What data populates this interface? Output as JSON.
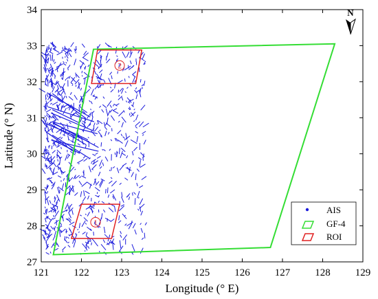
{
  "chart_data": {
    "type": "scatter",
    "title": "",
    "xlabel": "Longitude (° E)",
    "ylabel": "Latitude (° N)",
    "xlim": [
      121,
      129
    ],
    "ylim": [
      27,
      34
    ],
    "xticks": [
      121,
      122,
      123,
      124,
      125,
      126,
      127,
      128,
      129
    ],
    "yticks": [
      27,
      28,
      29,
      30,
      31,
      32,
      33,
      34
    ],
    "grid": false,
    "legend_position": "bottom-right",
    "north_arrow_label": "N",
    "colors": {
      "ais": "#1a1adc",
      "gf4": "#33dd33",
      "roi": "#e02020"
    },
    "series": [
      {
        "name": "AIS",
        "kind": "points",
        "region": {
          "lon": [
            121.1,
            123.6
          ],
          "lat": [
            27.2,
            33.0
          ]
        }
      },
      {
        "name": "GF-4",
        "kind": "polygon",
        "lon": [
          121.3,
          122.3,
          128.3,
          126.7
        ],
        "lat": [
          27.2,
          32.9,
          33.05,
          27.4
        ]
      },
      {
        "name": "ROI",
        "kind": "polygon",
        "lon": [
          121.7,
          122.0,
          123.0,
          122.8
        ],
        "lat": [
          27.65,
          28.6,
          28.6,
          27.65
        ]
      }
    ],
    "roi_regions": [
      {
        "label": "1",
        "lon": [
          121.75,
          122.0,
          122.95,
          122.75
        ],
        "lat": [
          27.65,
          28.6,
          28.6,
          27.65
        ],
        "label_at": [
          122.35,
          28.1
        ]
      },
      {
        "label": "2",
        "lon": [
          122.25,
          122.4,
          123.5,
          123.35
        ],
        "lat": [
          31.95,
          32.88,
          32.88,
          31.95
        ],
        "label_at": [
          122.95,
          32.45
        ]
      }
    ]
  }
}
